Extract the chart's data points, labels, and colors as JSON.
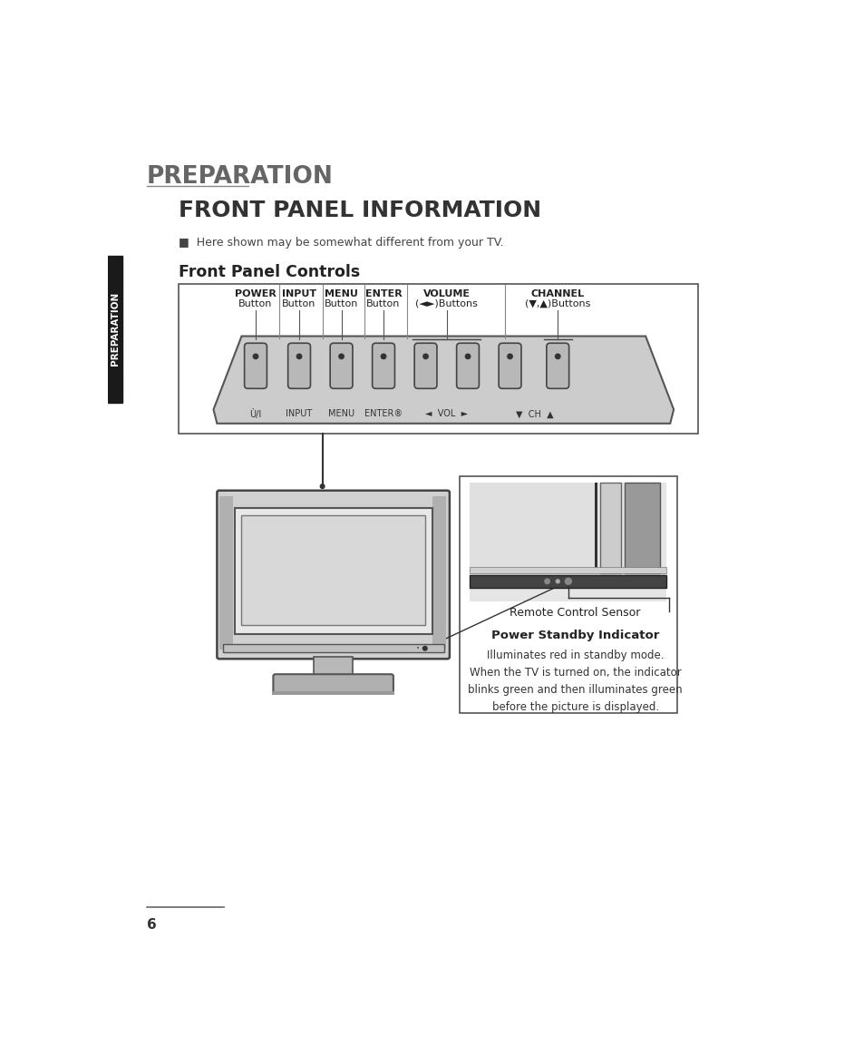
{
  "bg_color": "#ffffff",
  "page_number": "6",
  "title_preparation": "PREPARATION",
  "title_front_panel": "FRONT PANEL INFORMATION",
  "note_text": "■  Here shown may be somewhat different from your TV.",
  "section_title": "Front Panel Controls",
  "sidebar_text": "PREPARATION",
  "remote_sensor_label": "Remote Control Sensor",
  "power_standby_label": "Power Standby Indicator",
  "power_standby_desc": "Illuminates red in standby mode.\nWhen the TV is turned on, the indicator\nblinks green and then illuminates green\nbefore the picture is displayed.",
  "bottom_labels": [
    "Ù/I",
    "INPUT",
    "MENU",
    "ENTER®",
    "◄  VOL  ►",
    "▼  CH  ▲"
  ],
  "label_top_lines": [
    [
      "POWER",
      "Button"
    ],
    [
      "INPUT",
      "Button"
    ],
    [
      "MENU",
      "Button"
    ],
    [
      "ENTER",
      "Button"
    ],
    [
      "VOLUME",
      "(◄►)Buttons"
    ],
    [
      "CHANNEL",
      "(▼,▲)Buttons"
    ]
  ]
}
